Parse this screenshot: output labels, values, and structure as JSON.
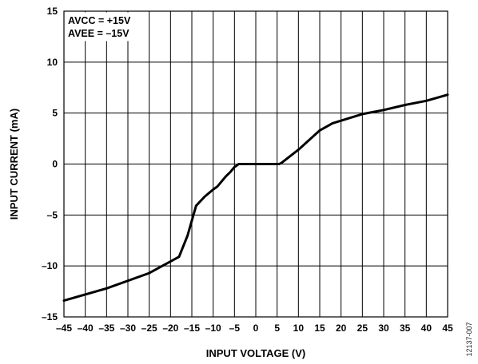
{
  "chart_data": {
    "type": "line",
    "title": "",
    "xlabel": "INPUT VOLTAGE (V)",
    "ylabel": "INPUT CURRENT (mA)",
    "xlim": [
      -45,
      45
    ],
    "ylim": [
      -15,
      15
    ],
    "x_ticks": [
      -45,
      -40,
      -35,
      -30,
      -25,
      -20,
      -15,
      -10,
      -5,
      0,
      5,
      10,
      15,
      20,
      25,
      30,
      35,
      40,
      45
    ],
    "y_ticks": [
      -15,
      -10,
      -5,
      0,
      5,
      10,
      15
    ],
    "x_tick_labels": [
      "–45",
      "–40",
      "–35",
      "–30",
      "–25",
      "–20",
      "–15",
      "–10",
      "–5",
      "0",
      "5",
      "10",
      "15",
      "20",
      "25",
      "30",
      "35",
      "40",
      "45"
    ],
    "y_tick_labels": [
      "–15",
      "–10",
      "–5",
      "0",
      "5",
      "10",
      "15"
    ],
    "grid": true,
    "legend": "none",
    "annotations": [
      "AVCC = +15V",
      "AVEE = –15V"
    ],
    "series": [
      {
        "x": [
          -45,
          -35,
          -25,
          -18,
          -16,
          -14,
          -12,
          -10,
          -9,
          -8,
          -7,
          -6,
          -5,
          -4,
          -3,
          5.5,
          6,
          10,
          15,
          18,
          25,
          30,
          35,
          40,
          45
        ],
        "y": [
          -13.4,
          -12.2,
          -10.7,
          -9.1,
          -7.0,
          -4.1,
          -3.2,
          -2.5,
          -2.2,
          -1.7,
          -1.2,
          -0.8,
          -0.3,
          0,
          0,
          0,
          0.1,
          1.4,
          3.3,
          4.0,
          4.9,
          5.3,
          5.8,
          6.2,
          6.8
        ]
      }
    ]
  },
  "figure_id": "12137-007",
  "colors": {
    "line": "#000000",
    "grid": "#000000",
    "background": "#ffffff"
  }
}
